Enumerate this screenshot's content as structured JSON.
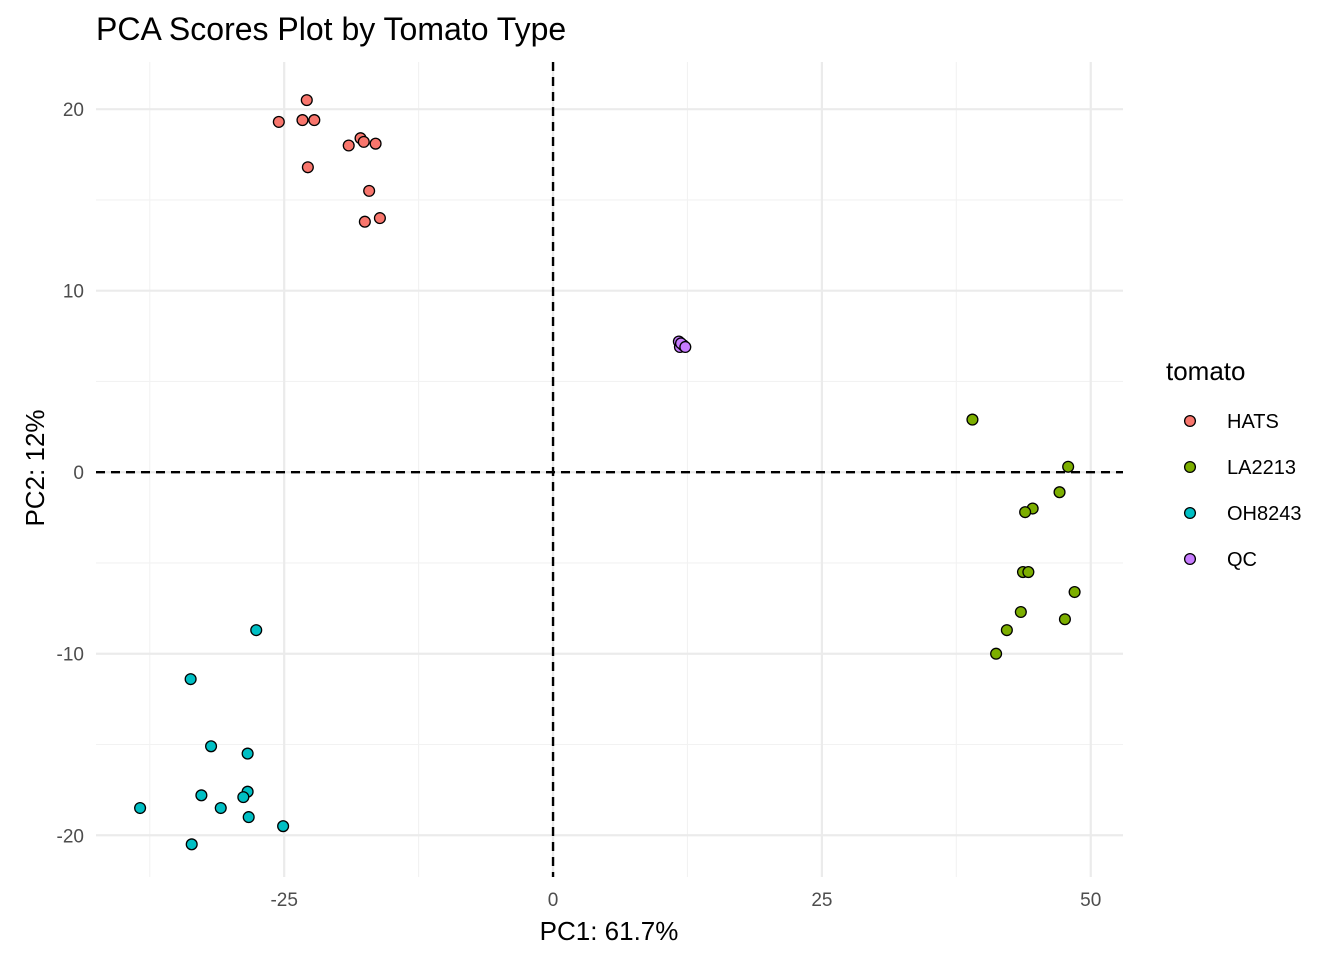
{
  "chart_data": {
    "type": "scatter",
    "title": "PCA Scores Plot by Tomato Type",
    "xlabel": "PC1: 61.7%",
    "ylabel": "PC2: 12%",
    "xlim": [
      -42.5,
      53
    ],
    "ylim": [
      -22.3,
      22.6
    ],
    "x_ticks": [
      -25,
      0,
      25,
      50
    ],
    "x_tick_labels": [
      "-25",
      "0",
      "25",
      "50"
    ],
    "x_minor": [
      -37.5,
      -12.5,
      12.5,
      37.5
    ],
    "y_ticks": [
      -20,
      -10,
      0,
      10,
      20
    ],
    "y_tick_labels": [
      "-20",
      "-10",
      "0",
      "10",
      "20"
    ],
    "y_minor": [
      -15,
      -5,
      5,
      15
    ],
    "reference_lines": {
      "x": 0,
      "y": 0,
      "style": "dashed"
    },
    "grid": true,
    "legend": {
      "title": "tomato",
      "position": "right"
    },
    "series": [
      {
        "name": "HATS",
        "color": "#F8766D",
        "points": [
          [
            -22.9,
            20.5
          ],
          [
            -25.5,
            19.3
          ],
          [
            -23.3,
            19.4
          ],
          [
            -22.2,
            19.4
          ],
          [
            -17.9,
            18.4
          ],
          [
            -17.6,
            18.2
          ],
          [
            -19.0,
            18.0
          ],
          [
            -16.5,
            18.1
          ],
          [
            -22.8,
            16.8
          ],
          [
            -17.1,
            15.5
          ],
          [
            -17.5,
            13.8
          ],
          [
            -16.1,
            14.0
          ]
        ]
      },
      {
        "name": "LA2213",
        "color": "#7CAE00",
        "points": [
          [
            39.0,
            2.9
          ],
          [
            47.9,
            0.3
          ],
          [
            47.1,
            -1.1
          ],
          [
            44.6,
            -2.0
          ],
          [
            43.9,
            -2.2
          ],
          [
            43.7,
            -5.5
          ],
          [
            44.2,
            -5.5
          ],
          [
            48.5,
            -6.6
          ],
          [
            43.5,
            -7.7
          ],
          [
            47.6,
            -8.1
          ],
          [
            42.2,
            -8.7
          ],
          [
            41.2,
            -10.0
          ]
        ]
      },
      {
        "name": "OH8243",
        "color": "#00BFC4",
        "points": [
          [
            -27.6,
            -8.7
          ],
          [
            -33.7,
            -11.4
          ],
          [
            -31.8,
            -15.1
          ],
          [
            -28.4,
            -15.5
          ],
          [
            -28.4,
            -17.6
          ],
          [
            -32.7,
            -17.8
          ],
          [
            -28.8,
            -17.9
          ],
          [
            -38.4,
            -18.5
          ],
          [
            -30.9,
            -18.5
          ],
          [
            -28.3,
            -19.0
          ],
          [
            -25.1,
            -19.5
          ],
          [
            -33.6,
            -20.5
          ]
        ]
      },
      {
        "name": "QC",
        "color": "#C77CFF",
        "points": [
          [
            11.7,
            7.2
          ],
          [
            11.8,
            6.9
          ],
          [
            12.1,
            7.0
          ],
          [
            11.9,
            7.1
          ],
          [
            12.3,
            6.9
          ]
        ]
      }
    ]
  }
}
